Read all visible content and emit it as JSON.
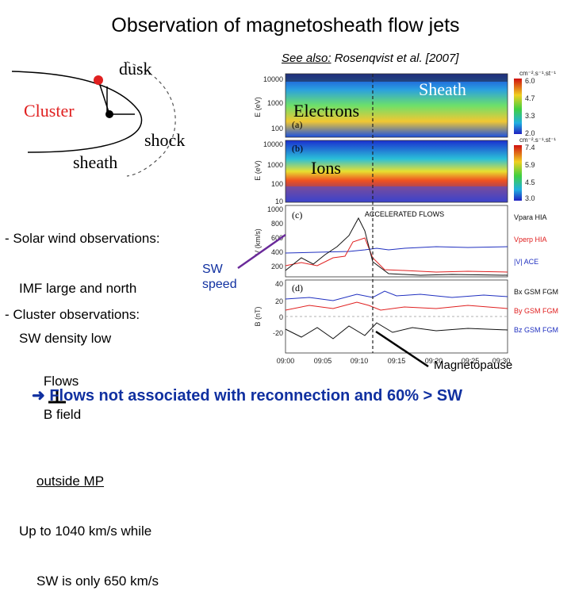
{
  "title": "Observation of magnetosheath flow jets",
  "see_also": {
    "prefix": "See also:",
    "ref": "Rosenqvist et al. [2007]"
  },
  "diagram": {
    "dusk": "dusk",
    "cluster": "Cluster",
    "shock": "shock",
    "sheath": "sheath"
  },
  "overlay": {
    "sheath": "Sheath",
    "electrons": "Electrons",
    "ions": "Ions",
    "sw_speed_line1": "SW",
    "sw_speed_line2": "speed",
    "magnetopause": "Magnetopause"
  },
  "solar_wind": {
    "heading": "- Solar wind observations:",
    "line1": "IMF large and north",
    "line2": "SW density low"
  },
  "cluster_obs": {
    "heading": "- Cluster observations:",
    "flows": "Flows",
    "bfield": "B field",
    "outside": "outside MP",
    "line3": "Up to 1040 km/s while",
    "line4": "SW is only 650 km/s"
  },
  "conclusion": "Flows not associated with reconnection and 60% > SW",
  "panels": {
    "a": "(a)",
    "b": "(b)",
    "c": "(c)",
    "d": "(d)",
    "accelerated": "ACCELERATED FLOWS",
    "e_ev": "E (eV)",
    "v_kms": "V (km/s)",
    "b_nt": "B (nT)",
    "yticks_energy_a": [
      "10000",
      "1000",
      "100"
    ],
    "yticks_energy_b": [
      "10000",
      "1000",
      "100",
      "10"
    ],
    "yticks_v": [
      "1000",
      "800",
      "600",
      "400",
      "200"
    ],
    "yticks_b": [
      "40",
      "20",
      "0",
      "-20"
    ],
    "xticks": [
      "09:00",
      "09:05",
      "09:10",
      "09:15",
      "09:20",
      "09:25",
      "09:30"
    ],
    "cbar_unit": "cm⁻².s⁻¹.st⁻¹",
    "cbar_a": [
      "6.0",
      "4.7",
      "3.3",
      "2.0"
    ],
    "cbar_b": [
      "7.4",
      "5.9",
      "4.5",
      "3.0"
    ],
    "legend_c": [
      "Vpara HIA",
      "Vperp HIA",
      "|V| ACE"
    ],
    "legend_d": [
      "Bx GSM FGM",
      "By GSM FGM",
      "Bz GSM FGM"
    ]
  },
  "colors": {
    "conclusion": "#1030a0",
    "arrow": "#6a2a9a",
    "red": "#e02020",
    "blue": "#2030c0"
  }
}
